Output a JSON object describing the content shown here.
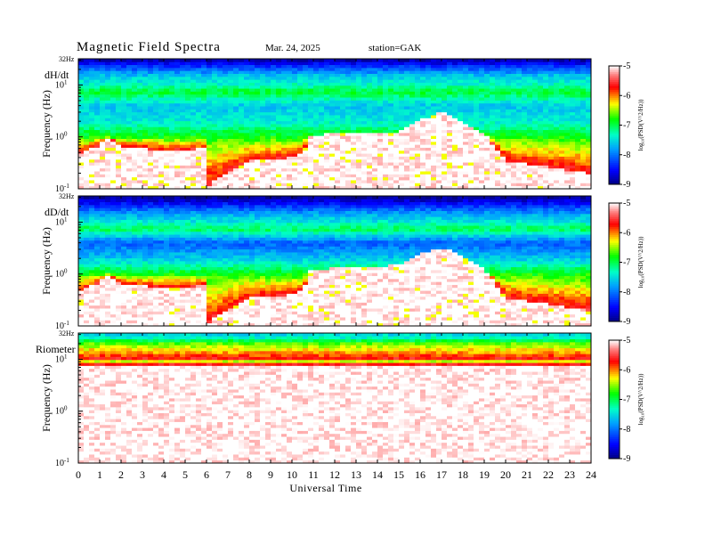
{
  "header": {
    "title": "Magnetic  Field  Spectra",
    "date": "Mar. 24, 2025",
    "station": "station=GAK"
  },
  "chart_data": [
    {
      "type": "heatmap",
      "panel_label": "dH/dt",
      "ylabel": "Frequency  (Hz)",
      "y_scale": "log",
      "ylim": [
        0.1,
        32
      ],
      "y_ticks": [
        {
          "base": "10",
          "exp": "-1"
        },
        {
          "base": "10",
          "exp": "0"
        },
        {
          "base": "10",
          "exp": "1"
        }
      ],
      "y_top_label": "32Hz",
      "xlim": [
        0,
        24
      ],
      "colorbar": {
        "label": "log₁₀(PSD(V^2/Hz))",
        "range": [
          -9,
          -5
        ],
        "ticks": [
          "-9",
          "-8",
          "-7",
          "-6",
          "-5"
        ]
      },
      "bands": [
        {
          "freq_hz": 30,
          "log_psd": -8.8
        },
        {
          "freq_hz": 22,
          "log_psd": -8.2
        },
        {
          "freq_hz": 15,
          "log_psd": -7.6
        },
        {
          "freq_hz": 10,
          "log_psd": -7.3
        },
        {
          "freq_hz": 7.5,
          "log_psd": -6.9
        },
        {
          "freq_hz": 4,
          "log_psd": -7.6
        },
        {
          "freq_hz": 2,
          "log_psd": -7.4
        },
        {
          "freq_hz": 1,
          "log_psd": -6.8
        }
      ],
      "white_region_upper_hz": [
        [
          0,
          0.45
        ],
        [
          1,
          0.7
        ],
        [
          1.4,
          1.0
        ],
        [
          2,
          0.65
        ],
        [
          4,
          0.55
        ],
        [
          6,
          0.6
        ],
        [
          6.1,
          0.12
        ],
        [
          8,
          0.35
        ],
        [
          10,
          0.4
        ],
        [
          10.6,
          0.5
        ],
        [
          10.7,
          1.1
        ],
        [
          13,
          1.2
        ],
        [
          15,
          1.2
        ],
        [
          16,
          2.2
        ],
        [
          17,
          3.0
        ],
        [
          18,
          2.0
        ],
        [
          19,
          1.2
        ],
        [
          20,
          0.35
        ],
        [
          24,
          0.2
        ]
      ]
    },
    {
      "type": "heatmap",
      "panel_label": "dD/dt",
      "ylabel": "Frequency  (Hz)",
      "y_scale": "log",
      "ylim": [
        0.1,
        32
      ],
      "y_ticks": [
        {
          "base": "10",
          "exp": "-1"
        },
        {
          "base": "10",
          "exp": "0"
        },
        {
          "base": "10",
          "exp": "1"
        }
      ],
      "y_top_label": "32Hz",
      "xlim": [
        0,
        24
      ],
      "colorbar": {
        "label": "log₁₀(PSD(V^2/Hz))",
        "range": [
          -9,
          -5
        ],
        "ticks": [
          "-9",
          "-8",
          "-7",
          "-6",
          "-5"
        ]
      },
      "bands": [
        {
          "freq_hz": 30,
          "log_psd": -8.9
        },
        {
          "freq_hz": 22,
          "log_psd": -8.4
        },
        {
          "freq_hz": 15,
          "log_psd": -7.8
        },
        {
          "freq_hz": 10,
          "log_psd": -7.4
        },
        {
          "freq_hz": 7.5,
          "log_psd": -7.0
        },
        {
          "freq_hz": 4,
          "log_psd": -8.1
        },
        {
          "freq_hz": 2,
          "log_psd": -7.6
        },
        {
          "freq_hz": 1,
          "log_psd": -6.8
        }
      ],
      "white_region_upper_hz": [
        [
          0,
          0.45
        ],
        [
          1,
          0.7
        ],
        [
          1.4,
          1.0
        ],
        [
          2,
          0.65
        ],
        [
          4,
          0.55
        ],
        [
          6,
          0.6
        ],
        [
          6.1,
          0.12
        ],
        [
          8,
          0.35
        ],
        [
          10,
          0.4
        ],
        [
          10.6,
          0.5
        ],
        [
          10.7,
          1.2
        ],
        [
          13,
          1.4
        ],
        [
          15,
          1.5
        ],
        [
          16,
          2.5
        ],
        [
          17,
          3.3
        ],
        [
          18,
          2.2
        ],
        [
          19,
          1.3
        ],
        [
          20,
          0.35
        ],
        [
          24,
          0.2
        ]
      ]
    },
    {
      "type": "heatmap",
      "panel_label": "Riometer",
      "ylabel": "Frequency  (Hz)",
      "y_scale": "log",
      "ylim": [
        0.1,
        32
      ],
      "y_ticks": [
        {
          "base": "10",
          "exp": "-1"
        },
        {
          "base": "10",
          "exp": "0"
        },
        {
          "base": "10",
          "exp": "1"
        }
      ],
      "y_top_label": "32Hz",
      "xlim": [
        0,
        24
      ],
      "colorbar": {
        "label": "log₁₀(PSD(V^2/Hz))",
        "range": [
          -9,
          -5
        ],
        "ticks": [
          "-9",
          "-8",
          "-7",
          "-6",
          "-5"
        ]
      },
      "bands": [
        {
          "freq_hz": 28,
          "log_psd": -7.5
        },
        {
          "freq_hz": 20,
          "log_psd": -6.6
        },
        {
          "freq_hz": 14,
          "log_psd": -6.1
        },
        {
          "freq_hz": 10,
          "log_psd": -5.6
        }
      ],
      "white_region_upper_hz": [
        [
          0,
          8
        ],
        [
          24,
          8
        ]
      ]
    }
  ],
  "xaxis": {
    "label": "Universal Time",
    "ticks": [
      "0",
      "1",
      "2",
      "3",
      "4",
      "5",
      "6",
      "7",
      "8",
      "9",
      "10",
      "11",
      "12",
      "13",
      "14",
      "15",
      "16",
      "17",
      "18",
      "19",
      "20",
      "21",
      "22",
      "23",
      "24"
    ]
  }
}
